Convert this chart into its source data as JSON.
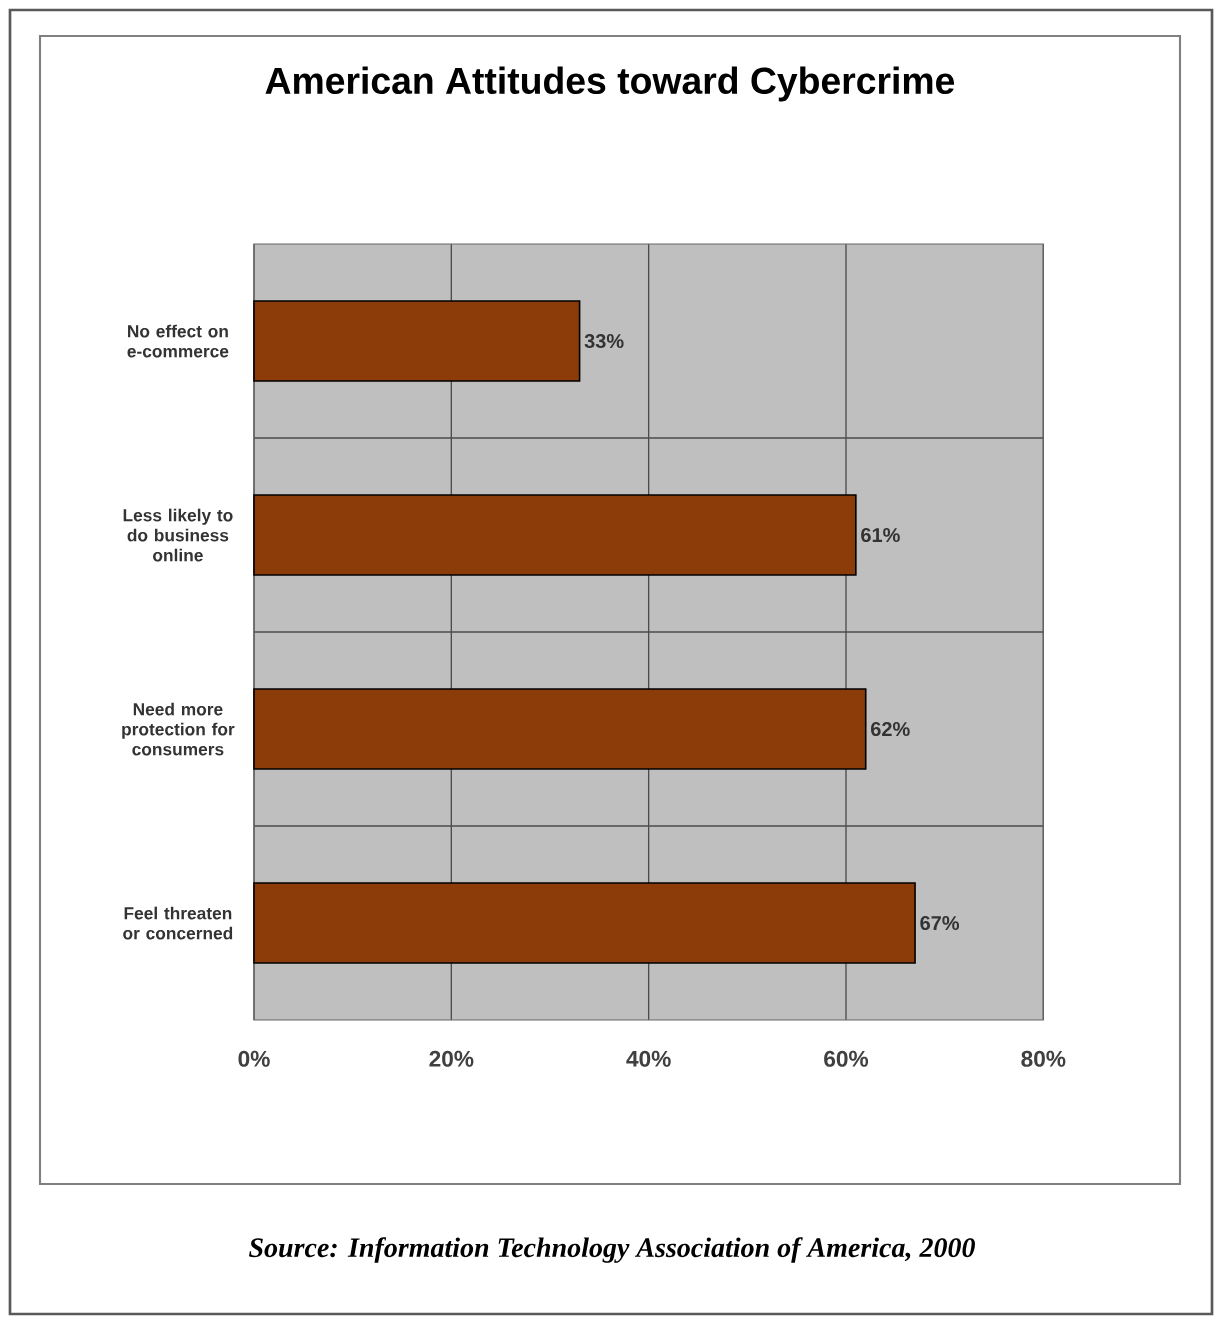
{
  "chart_data": {
    "type": "bar",
    "orientation": "horizontal",
    "title": "American Attitudes toward Cybercrime",
    "categories": [
      "No effect on e-commerce",
      "Less likely to do business online",
      "Need more protection for consumers",
      "Feel threaten or concerned"
    ],
    "values": [
      33,
      61,
      62,
      67
    ],
    "color": "#8b3c08",
    "value_labels": [
      "33%",
      "61%",
      "62%",
      "67%"
    ],
    "xlim": [
      0,
      80
    ],
    "xticks": [
      {
        "value": 0,
        "label": "0%"
      },
      {
        "value": 20,
        "label": "20%"
      },
      {
        "value": 40,
        "label": "40%"
      },
      {
        "value": 60,
        "label": "60%"
      },
      {
        "value": 80,
        "label": "80%"
      }
    ],
    "grid": true,
    "annotations": [
      "Source:  Information Technology Association of America, 2000"
    ]
  }
}
